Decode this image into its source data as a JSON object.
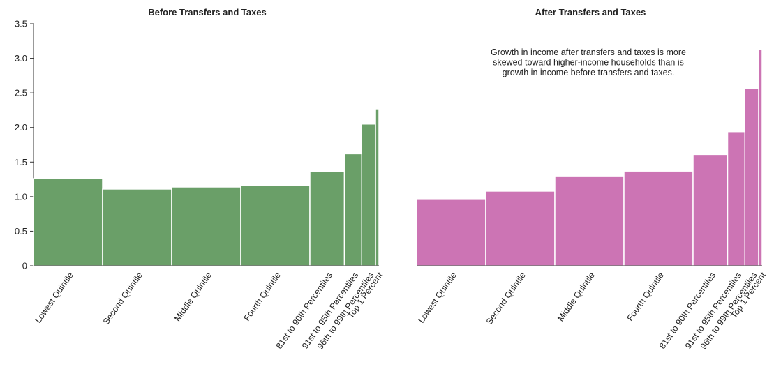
{
  "chart_data": [
    {
      "type": "bar",
      "title": "Before Transfers and Taxes",
      "categories": [
        "Lowest Quintile",
        "Second Quintile",
        "Middle Quintile",
        "Fourth Quintile",
        "81st to 90th Percentiles",
        "91st to 95th Percentiles",
        "96th to 99th Percentiles",
        "Top 1 Percent"
      ],
      "widths": [
        20,
        20,
        20,
        20,
        10,
        5,
        4,
        1
      ],
      "values": [
        1.26,
        1.11,
        1.14,
        1.16,
        1.36,
        1.62,
        2.05,
        2.27
      ],
      "ylim": [
        0,
        3.5
      ],
      "yticks": [
        "0",
        "0.5",
        "1.0",
        "1.5",
        "2.0",
        "2.5",
        "3.0",
        "3.5"
      ],
      "color": "#6a9f68",
      "xlabel": "",
      "ylabel": ""
    },
    {
      "type": "bar",
      "title": "After Transfers and Taxes",
      "categories": [
        "Lowest Quintile",
        "Second Quintile",
        "Middle Quintile",
        "Fourth Quintile",
        "81st to 90th Percentiles",
        "91st to 95th Percentiles",
        "96th to 99th Percentiles",
        "Top 1 Percent"
      ],
      "widths": [
        20,
        20,
        20,
        20,
        10,
        5,
        4,
        1
      ],
      "values": [
        0.96,
        1.08,
        1.29,
        1.37,
        1.61,
        1.94,
        2.56,
        3.13
      ],
      "ylim": [
        0,
        3.5
      ],
      "color": "#cc74b4",
      "annotation": [
        "Growth in income after transfers and taxes is more",
        "skewed toward higher-income households than is",
        "growth in income before transfers and taxes."
      ],
      "xlabel": "",
      "ylabel": ""
    }
  ]
}
